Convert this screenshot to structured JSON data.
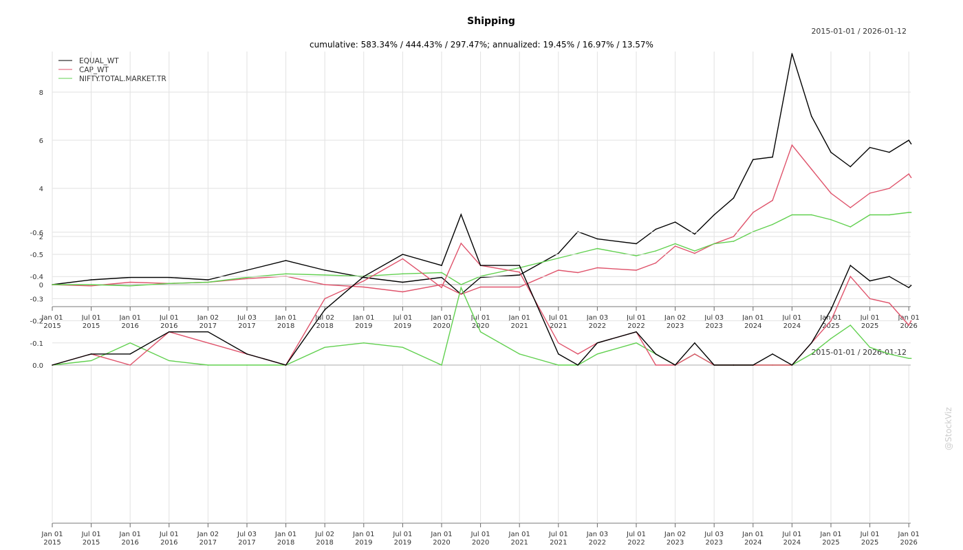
{
  "chart_data": [
    {
      "type": "line",
      "title": "Shipping",
      "subtitle": "cumulative: 583.34% / 444.43% / 297.47%; annualized: 19.45% / 16.97% / 13.57%",
      "date_range": "2015-01-01 / 2026-01-12",
      "ylim": [
        -0.9,
        9.7
      ],
      "yticks": [
        0,
        2,
        4,
        6,
        8
      ],
      "legend_position": "top-left",
      "grid": true,
      "x": [
        2015,
        2015.5,
        2016,
        2016.5,
        2017,
        2017.5,
        2018,
        2018.5,
        2019,
        2019.5,
        2020,
        2020.25,
        2020.5,
        2021,
        2021.5,
        2021.75,
        2022,
        2022.5,
        2022.75,
        2023,
        2023.25,
        2023.5,
        2023.75,
        2024,
        2024.25,
        2024.5,
        2024.75,
        2025,
        2025.25,
        2025.5,
        2025.75,
        2026,
        2026.03
      ],
      "series": [
        {
          "name": "EQUAL_WT",
          "color": "#000000",
          "values": [
            0,
            0.2,
            0.3,
            0.3,
            0.2,
            0.6,
            1.0,
            0.6,
            0.3,
            0.1,
            0.3,
            -0.4,
            0.3,
            0.4,
            1.3,
            2.2,
            1.9,
            1.7,
            2.3,
            2.6,
            2.1,
            2.9,
            3.6,
            5.2,
            5.3,
            9.6,
            7.0,
            5.5,
            4.9,
            5.7,
            5.5,
            6.0,
            5.85
          ]
        },
        {
          "name": "CAP_WT",
          "color": "#df536b",
          "values": [
            0,
            -0.05,
            0.1,
            0.05,
            0.1,
            0.25,
            0.35,
            0.0,
            -0.1,
            -0.3,
            0.0,
            -0.4,
            -0.1,
            -0.1,
            0.6,
            0.5,
            0.7,
            0.6,
            0.9,
            1.6,
            1.3,
            1.7,
            2.0,
            3.0,
            3.5,
            5.8,
            4.8,
            3.8,
            3.2,
            3.8,
            4.0,
            4.6,
            4.45
          ]
        },
        {
          "name": "NIFTY.TOTAL.MARKET.TR",
          "color": "#61d04f",
          "values": [
            0,
            0,
            -0.05,
            0.05,
            0.1,
            0.3,
            0.45,
            0.4,
            0.35,
            0.45,
            0.5,
            0.0,
            0.35,
            0.7,
            1.1,
            1.3,
            1.5,
            1.2,
            1.4,
            1.7,
            1.4,
            1.7,
            1.8,
            2.2,
            2.5,
            2.9,
            2.9,
            2.7,
            2.4,
            2.9,
            2.9,
            3.0,
            3.0
          ]
        }
      ]
    },
    {
      "type": "line",
      "title": "",
      "date_range": "2015-01-01 / 2026-01-12",
      "ylim": [
        -0.7,
        0
      ],
      "yticks": [
        0.0,
        -0.1,
        -0.2,
        -0.3,
        -0.4,
        -0.5,
        -0.6
      ],
      "ytick_labels": [
        "0.0",
        "-0.1",
        "-0.2",
        "-0.3",
        "-0.4",
        "-0.5",
        "-0.6"
      ],
      "grid": true,
      "x": [
        2015,
        2015.5,
        2016,
        2016.5,
        2017,
        2017.5,
        2018,
        2018.5,
        2019,
        2019.5,
        2020,
        2020.25,
        2020.5,
        2021,
        2021.5,
        2021.75,
        2022,
        2022.5,
        2022.75,
        2023,
        2023.25,
        2023.5,
        2023.75,
        2024,
        2024.25,
        2024.5,
        2024.75,
        2025,
        2025.25,
        2025.5,
        2025.75,
        2026,
        2026.03
      ],
      "series": [
        {
          "name": "NIFTY.TOTAL.MARKET.TR",
          "color": "#61d04f",
          "values": [
            0,
            -0.02,
            -0.1,
            -0.02,
            0,
            0,
            0,
            -0.08,
            -0.1,
            -0.08,
            0,
            -0.35,
            -0.15,
            -0.05,
            0,
            0,
            -0.05,
            -0.1,
            -0.05,
            0,
            -0.05,
            0,
            0,
            0,
            0,
            0,
            -0.05,
            -0.12,
            -0.18,
            -0.08,
            -0.05,
            -0.03,
            -0.03
          ]
        },
        {
          "name": "CAP_WT",
          "color": "#df536b",
          "values": [
            0,
            -0.05,
            0,
            -0.15,
            -0.1,
            -0.05,
            0,
            -0.3,
            -0.38,
            -0.48,
            -0.35,
            -0.55,
            -0.45,
            -0.42,
            -0.1,
            -0.05,
            -0.1,
            -0.15,
            0,
            0,
            -0.05,
            0,
            0,
            0,
            0,
            0,
            -0.1,
            -0.2,
            -0.4,
            -0.3,
            -0.28,
            -0.18,
            -0.2
          ]
        },
        {
          "name": "EQUAL_WT",
          "color": "#000000",
          "values": [
            0,
            -0.05,
            -0.05,
            -0.15,
            -0.15,
            -0.05,
            0,
            -0.25,
            -0.4,
            -0.5,
            -0.45,
            -0.68,
            -0.45,
            -0.45,
            -0.05,
            0,
            -0.1,
            -0.15,
            -0.05,
            0,
            -0.1,
            0,
            0,
            0,
            -0.05,
            0,
            -0.1,
            -0.25,
            -0.45,
            -0.38,
            -0.4,
            -0.35,
            -0.36
          ]
        }
      ]
    }
  ],
  "xticks": [
    {
      "v": 2015,
      "l1": "Jan 01",
      "l2": "2015"
    },
    {
      "v": 2015.5,
      "l1": "Jul 01",
      "l2": "2015"
    },
    {
      "v": 2016,
      "l1": "Jan 01",
      "l2": "2016"
    },
    {
      "v": 2016.5,
      "l1": "Jul 01",
      "l2": "2016"
    },
    {
      "v": 2017,
      "l1": "Jan 02",
      "l2": "2017"
    },
    {
      "v": 2017.5,
      "l1": "Jul 03",
      "l2": "2017"
    },
    {
      "v": 2018,
      "l1": "Jan 01",
      "l2": "2018"
    },
    {
      "v": 2018.5,
      "l1": "Jul 02",
      "l2": "2018"
    },
    {
      "v": 2019,
      "l1": "Jan 01",
      "l2": "2019"
    },
    {
      "v": 2019.5,
      "l1": "Jul 01",
      "l2": "2019"
    },
    {
      "v": 2020,
      "l1": "Jan 01",
      "l2": "2020"
    },
    {
      "v": 2020.5,
      "l1": "Jul 01",
      "l2": "2020"
    },
    {
      "v": 2021,
      "l1": "Jan 01",
      "l2": "2021"
    },
    {
      "v": 2021.5,
      "l1": "Jul 01",
      "l2": "2021"
    },
    {
      "v": 2022,
      "l1": "Jan 03",
      "l2": "2022"
    },
    {
      "v": 2022.5,
      "l1": "Jul 01",
      "l2": "2022"
    },
    {
      "v": 2023,
      "l1": "Jan 02",
      "l2": "2023"
    },
    {
      "v": 2023.5,
      "l1": "Jul 03",
      "l2": "2023"
    },
    {
      "v": 2024,
      "l1": "Jan 01",
      "l2": "2024"
    },
    {
      "v": 2024.5,
      "l1": "Jul 01",
      "l2": "2024"
    },
    {
      "v": 2025,
      "l1": "Jan 01",
      "l2": "2025"
    },
    {
      "v": 2025.5,
      "l1": "Jul 01",
      "l2": "2025"
    },
    {
      "v": 2026,
      "l1": "Jan 01",
      "l2": "2026"
    }
  ],
  "watermark": "@StockViz"
}
